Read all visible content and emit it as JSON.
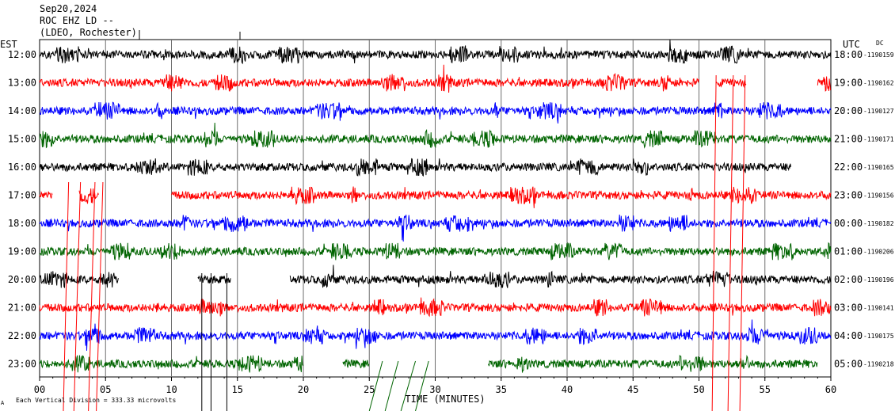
{
  "header": {
    "date": "Sep20,2024",
    "station": "ROC EHZ LD --",
    "network": "(LDEO, Rochester)"
  },
  "labels": {
    "left_tz": "EST",
    "right_tz": "UTC",
    "dc": "DC",
    "xlabel": "TIME (MINUTES)",
    "scale_note": "Each Vertical Division =  333.33 microvolts",
    "scale_mark": "A"
  },
  "chart_data": {
    "type": "line",
    "title": "ROC EHZ LD --",
    "xlabel": "TIME (MINUTES)",
    "xlim": [
      0,
      60
    ],
    "x_ticks": [
      "00",
      "05",
      "10",
      "15",
      "20",
      "25",
      "30",
      "35",
      "40",
      "45",
      "50",
      "55",
      "60"
    ],
    "grid": true,
    "trace_colors": [
      "#000000",
      "#ff0000",
      "#0000ff",
      "#006400"
    ],
    "rows": [
      {
        "local": "12:00",
        "utc": "18:00",
        "dc": "-1190159",
        "color": "#000000",
        "segments": [
          [
            0,
            60
          ]
        ]
      },
      {
        "local": "13:00",
        "utc": "19:00",
        "dc": "-1190162",
        "color": "#ff0000",
        "segments": [
          [
            0,
            50
          ],
          [
            51.3,
            53.6
          ],
          [
            59,
            60
          ]
        ]
      },
      {
        "local": "14:00",
        "utc": "20:00",
        "dc": "-1190127",
        "color": "#0000ff",
        "segments": [
          [
            0,
            60
          ]
        ]
      },
      {
        "local": "15:00",
        "utc": "21:00",
        "dc": "-1190171",
        "color": "#006400",
        "segments": [
          [
            0,
            60
          ]
        ]
      },
      {
        "local": "16:00",
        "utc": "22:00",
        "dc": "-1190165",
        "color": "#000000",
        "segments": [
          [
            0,
            57
          ]
        ]
      },
      {
        "local": "17:00",
        "utc": "23:00",
        "dc": "-1190156",
        "color": "#ff0000",
        "segments": [
          [
            0,
            1
          ],
          [
            3,
            4.5
          ],
          [
            10,
            60
          ]
        ]
      },
      {
        "local": "18:00",
        "utc": "00:00",
        "dc": "-1190182",
        "color": "#0000ff",
        "segments": [
          [
            0,
            60
          ]
        ]
      },
      {
        "local": "19:00",
        "utc": "01:00",
        "dc": "-1190206",
        "color": "#006400",
        "segments": [
          [
            0,
            60
          ]
        ]
      },
      {
        "local": "20:00",
        "utc": "02:00",
        "dc": "-1190196",
        "color": "#000000",
        "segments": [
          [
            0,
            6
          ],
          [
            12,
            14.5
          ],
          [
            19,
            60
          ]
        ]
      },
      {
        "local": "21:00",
        "utc": "03:00",
        "dc": "-1190141",
        "color": "#ff0000",
        "segments": [
          [
            0,
            60
          ]
        ]
      },
      {
        "local": "22:00",
        "utc": "04:00",
        "dc": "-1190175",
        "color": "#0000ff",
        "segments": [
          [
            0,
            60
          ]
        ]
      },
      {
        "local": "23:00",
        "utc": "05:00",
        "dc": "-1190218",
        "color": "#006400",
        "segments": [
          [
            0,
            20
          ],
          [
            23,
            25
          ],
          [
            34,
            59
          ]
        ]
      }
    ]
  }
}
